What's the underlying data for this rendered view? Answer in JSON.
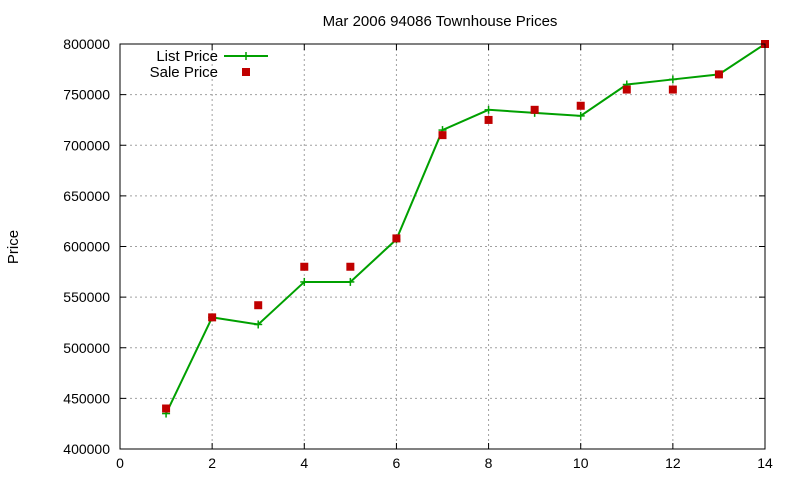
{
  "chart_data": {
    "type": "line",
    "title": "Mar 2006 94086 Townhouse Prices",
    "xlabel": "",
    "ylabel": "Price",
    "xlim": [
      0,
      14
    ],
    "ylim": [
      400000,
      800000
    ],
    "xticks": [
      0,
      2,
      4,
      6,
      8,
      10,
      12,
      14
    ],
    "yticks": [
      400000,
      450000,
      500000,
      550000,
      600000,
      650000,
      700000,
      750000,
      800000
    ],
    "grid": true,
    "legend_position": "top-left",
    "series": [
      {
        "name": "List Price",
        "style": "line-points",
        "color": "#00a000",
        "x": [
          1,
          2,
          3,
          4,
          5,
          6,
          7,
          8,
          9,
          10,
          11,
          12,
          13,
          14
        ],
        "y": [
          435000,
          530000,
          523000,
          565000,
          565000,
          607000,
          715000,
          735000,
          732000,
          729000,
          760000,
          765000,
          770000,
          800000
        ]
      },
      {
        "name": "Sale Price",
        "style": "points",
        "color": "#c00000",
        "x": [
          1,
          2,
          3,
          4,
          5,
          6,
          7,
          8,
          9,
          10,
          11,
          12,
          13,
          14
        ],
        "y": [
          440000,
          530000,
          542000,
          580000,
          580000,
          608000,
          710000,
          725000,
          735000,
          739000,
          755000,
          755000,
          770000,
          800000
        ]
      }
    ]
  }
}
